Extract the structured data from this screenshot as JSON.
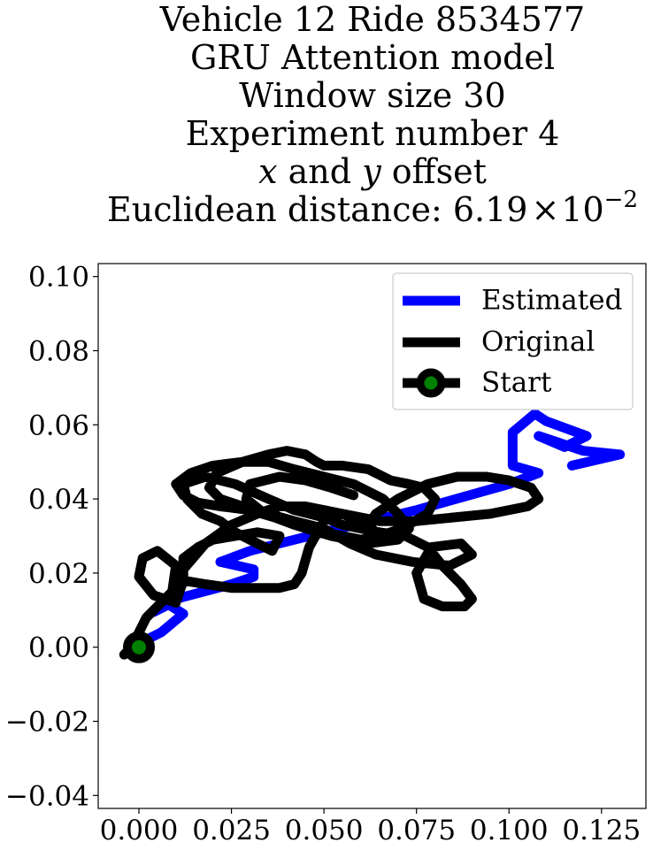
{
  "chart_data": {
    "type": "line",
    "title_lines": [
      "Vehicle 12 Ride 8534577",
      "GRU Attention model",
      "Window size 30",
      "Experiment number 4",
      "x and y offset",
      "Euclidean distance: 6.19×10^-2"
    ],
    "title": {
      "line1": "Vehicle 12 Ride 8534577",
      "line2": "GRU Attention model",
      "line3": "Window size 30",
      "line4": "Experiment number 4",
      "line5_var_x": "x",
      "line5_and": " and ",
      "line5_var_y": "y",
      "line5_rest": " offset",
      "line6_prefix": "Euclidean distance: 6.19",
      "line6_times": "×",
      "line6_base": "10",
      "line6_exp": "−2"
    },
    "xlabel": "",
    "ylabel": "",
    "xlim": [
      -0.011,
      0.137
    ],
    "ylim": [
      -0.0435,
      0.1035
    ],
    "x_ticks": [
      0.0,
      0.025,
      0.05,
      0.075,
      0.1,
      0.125
    ],
    "x_tick_labels": [
      "0.000",
      "0.025",
      "0.050",
      "0.075",
      "0.100",
      "0.125"
    ],
    "y_ticks": [
      -0.04,
      -0.02,
      0.0,
      0.02,
      0.04,
      0.06,
      0.08,
      0.1
    ],
    "y_tick_labels": [
      "−0.04",
      "−0.02",
      "0.00",
      "0.02",
      "0.04",
      "0.06",
      "0.08",
      "0.10"
    ],
    "grid": false,
    "legend": {
      "placement": "top-right",
      "entries": [
        "Estimated",
        "Original",
        "Start"
      ]
    },
    "series": [
      {
        "name": "Estimated",
        "color": "#0000ff",
        "x": [
          0.0,
          0.006,
          0.012,
          0.008,
          0.004,
          0.01,
          0.025,
          0.031,
          0.031,
          0.022,
          0.03,
          0.05,
          0.075,
          0.1,
          0.108,
          0.101,
          0.101,
          0.107,
          0.11,
          0.121,
          0.115,
          0.108,
          0.12,
          0.13,
          0.117
        ],
        "y": [
          0.001,
          0.004,
          0.009,
          0.0115,
          0.0095,
          0.013,
          0.017,
          0.019,
          0.021,
          0.023,
          0.026,
          0.031,
          0.037,
          0.044,
          0.047,
          0.049,
          0.058,
          0.063,
          0.061,
          0.057,
          0.054,
          0.057,
          0.053,
          0.052,
          0.049
        ]
      },
      {
        "name": "Original",
        "color": "#000000",
        "x": [
          -0.004,
          -0.002,
          0.0,
          0.002,
          0.005,
          0.009,
          0.01,
          0.005,
          0.001,
          0.0,
          0.004,
          0.01,
          0.012,
          0.012,
          0.016,
          0.02,
          0.026,
          0.032,
          0.038,
          0.036,
          0.032,
          0.026,
          0.022,
          0.017,
          0.013,
          0.012,
          0.018,
          0.026,
          0.035,
          0.042,
          0.05,
          0.055,
          0.065,
          0.072,
          0.078,
          0.082,
          0.087,
          0.09,
          0.088,
          0.082,
          0.077,
          0.075,
          0.079,
          0.087,
          0.09,
          0.084,
          0.074,
          0.064,
          0.057,
          0.05,
          0.042,
          0.035,
          0.028,
          0.022,
          0.019,
          0.021,
          0.028,
          0.035,
          0.04,
          0.045,
          0.048,
          0.05,
          0.055,
          0.062,
          0.068,
          0.073,
          0.077,
          0.08,
          0.078,
          0.071,
          0.065,
          0.062,
          0.064,
          0.07,
          0.078,
          0.086,
          0.094,
          0.1,
          0.106,
          0.108,
          0.105,
          0.095,
          0.085,
          0.075,
          0.065,
          0.055,
          0.05,
          0.046,
          0.044,
          0.042,
          0.038,
          0.032,
          0.025,
          0.018,
          0.012,
          0.01,
          0.012,
          0.018,
          0.025,
          0.032,
          0.038,
          0.045,
          0.055,
          0.062,
          0.065,
          0.06,
          0.05,
          0.04,
          0.03,
          0.022,
          0.016,
          0.012,
          0.01,
          0.014,
          0.02,
          0.028,
          0.035,
          0.042,
          0.05,
          0.058,
          0.066,
          0.07,
          0.073,
          0.07,
          0.062,
          0.052,
          0.042,
          0.034,
          0.029,
          0.03,
          0.038,
          0.045,
          0.052,
          0.058
        ],
        "y": [
          -0.002,
          0.0,
          0.004,
          0.008,
          0.011,
          0.015,
          0.022,
          0.026,
          0.024,
          0.019,
          0.014,
          0.012,
          0.018,
          0.024,
          0.027,
          0.029,
          0.03,
          0.031,
          0.03,
          0.026,
          0.028,
          0.031,
          0.034,
          0.036,
          0.04,
          0.044,
          0.046,
          0.044,
          0.04,
          0.037,
          0.035,
          0.033,
          0.031,
          0.03,
          0.027,
          0.022,
          0.017,
          0.013,
          0.011,
          0.011,
          0.013,
          0.02,
          0.027,
          0.028,
          0.025,
          0.022,
          0.023,
          0.025,
          0.028,
          0.032,
          0.034,
          0.036,
          0.038,
          0.04,
          0.043,
          0.047,
          0.05,
          0.052,
          0.053,
          0.052,
          0.05,
          0.049,
          0.049,
          0.048,
          0.045,
          0.044,
          0.043,
          0.04,
          0.036,
          0.032,
          0.03,
          0.033,
          0.036,
          0.04,
          0.044,
          0.046,
          0.046,
          0.045,
          0.043,
          0.04,
          0.038,
          0.036,
          0.035,
          0.034,
          0.034,
          0.036,
          0.034,
          0.027,
          0.02,
          0.017,
          0.016,
          0.016,
          0.016,
          0.017,
          0.018,
          0.019,
          0.021,
          0.028,
          0.033,
          0.036,
          0.038,
          0.038,
          0.036,
          0.033,
          0.03,
          0.029,
          0.031,
          0.034,
          0.037,
          0.038,
          0.039,
          0.041,
          0.044,
          0.047,
          0.049,
          0.05,
          0.05,
          0.048,
          0.046,
          0.044,
          0.04,
          0.036,
          0.032,
          0.029,
          0.028,
          0.03,
          0.033,
          0.036,
          0.04,
          0.044,
          0.046,
          0.045,
          0.043,
          0.041
        ]
      }
    ],
    "start_point": {
      "name": "Start",
      "x": 0.0,
      "y": 0.0
    },
    "colors": {
      "estimated": "#0000ff",
      "original": "#000000",
      "start_marker_edge": "#000000",
      "start_marker_fill": "#008000",
      "axes_frame": "#000000",
      "legend_frame": "#cccccc",
      "background": "#ffffff"
    }
  }
}
